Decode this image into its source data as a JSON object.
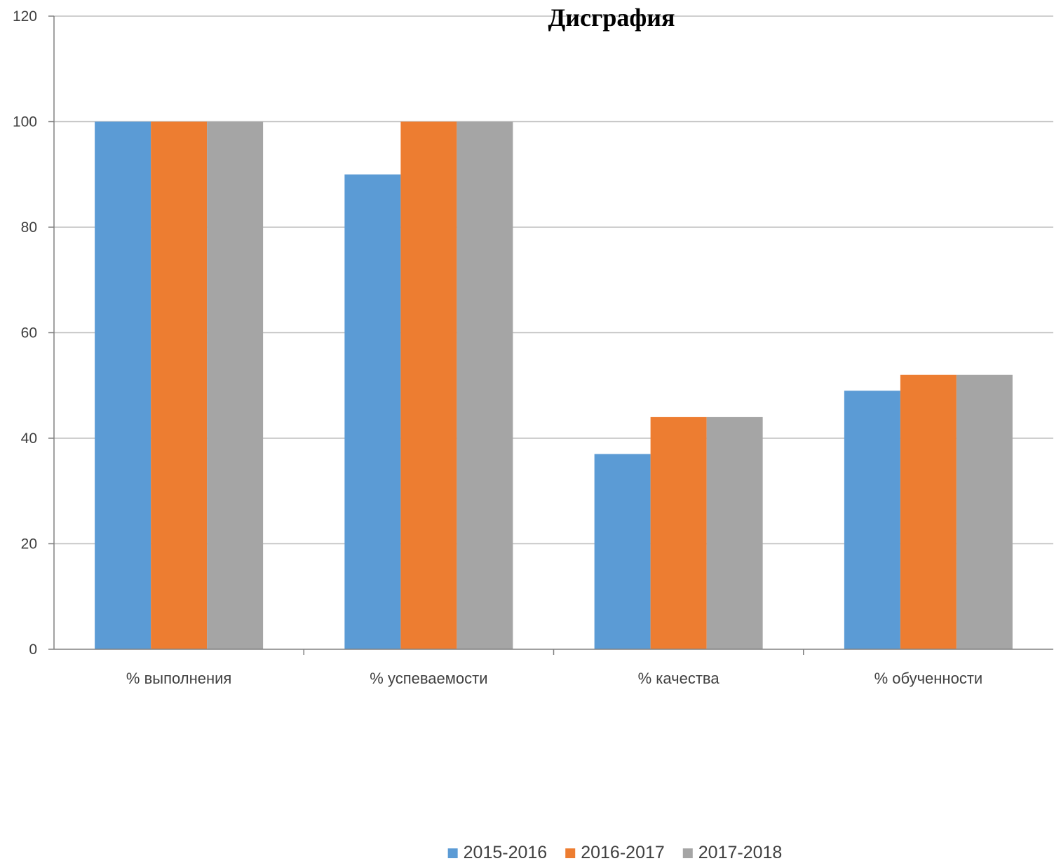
{
  "chart_data": {
    "type": "bar",
    "title": "Дисграфия",
    "xlabel": "",
    "ylabel": "",
    "categories": [
      "% выполнения",
      "% успеваемости",
      "% качества",
      "% обученности"
    ],
    "series": [
      {
        "name": "2015-2016",
        "color": "#5B9BD5",
        "values": [
          100,
          90,
          37,
          49
        ]
      },
      {
        "name": "2016-2017",
        "color": "#ED7D31",
        "values": [
          100,
          100,
          44,
          52
        ]
      },
      {
        "name": "2017-2018",
        "color": "#A5A5A5",
        "values": [
          100,
          100,
          44,
          52
        ]
      }
    ],
    "ylim": [
      0,
      120
    ],
    "yticks": [
      0,
      20,
      40,
      60,
      80,
      100,
      120
    ],
    "grid": true,
    "legend_position": "bottom"
  }
}
